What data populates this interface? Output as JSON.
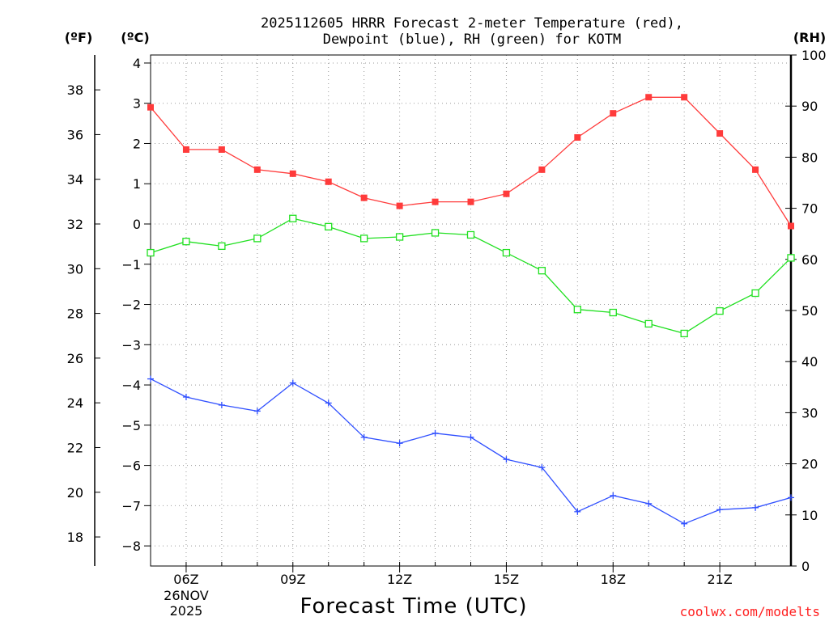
{
  "chart_data": {
    "type": "line",
    "title_lines": [
      "2025112605 HRRR Forecast 2-meter Temperature (red),",
      "Dewpoint (blue), RH (green) for KOTM"
    ],
    "xlabel": "Forecast Time (UTC)",
    "x_hours": [
      5,
      6,
      7,
      8,
      9,
      10,
      11,
      12,
      13,
      14,
      15,
      16,
      17,
      18,
      19,
      20,
      21,
      22,
      23
    ],
    "x_range": [
      5,
      23
    ],
    "x_ticks": [
      {
        "hour": 6,
        "label": "06Z",
        "date": "26NOV",
        "year": "2025"
      },
      {
        "hour": 9,
        "label": "09Z"
      },
      {
        "hour": 12,
        "label": "12Z"
      },
      {
        "hour": 15,
        "label": "15Z"
      },
      {
        "hour": 18,
        "label": "18Z"
      },
      {
        "hour": 21,
        "label": "21Z"
      }
    ],
    "axes": {
      "fahrenheit": {
        "label": "(ºF)",
        "ticks": [
          "38",
          "36",
          "34",
          "32",
          "30",
          "28",
          "26",
          "24",
          "22",
          "20",
          "18"
        ]
      },
      "celsius": {
        "label": "(ºC)",
        "range": [
          -8.5,
          4.2
        ],
        "ticks": [
          "4",
          "3",
          "2",
          "1",
          "0",
          "−1",
          "−2",
          "−3",
          "−4",
          "−5",
          "−6",
          "−7",
          "−8"
        ]
      },
      "rh": {
        "label": "(RH)",
        "range": [
          0,
          100
        ],
        "ticks": [
          "100",
          "90",
          "80",
          "70",
          "60",
          "50",
          "40",
          "30",
          "20",
          "10",
          "0"
        ]
      }
    },
    "series": [
      {
        "name": "Temperature",
        "axis": "celsius",
        "color": "#ff3b3b",
        "marker": "filled-square",
        "values": [
          2.9,
          1.85,
          1.85,
          1.35,
          1.25,
          1.05,
          0.65,
          0.45,
          0.55,
          0.55,
          0.75,
          1.35,
          2.15,
          2.75,
          3.15,
          3.15,
          2.25,
          1.35,
          -0.05
        ]
      },
      {
        "name": "Dewpoint",
        "axis": "celsius",
        "color": "#3050ff",
        "marker": "plus",
        "values": [
          -3.85,
          -4.3,
          -4.5,
          -4.65,
          -3.95,
          -4.45,
          -5.3,
          -5.45,
          -5.2,
          -5.3,
          -5.85,
          -6.05,
          -7.15,
          -6.75,
          -6.95,
          -7.45,
          -7.1,
          -7.05,
          -6.8
        ]
      },
      {
        "name": "RH",
        "axis": "rh",
        "color": "#20e020",
        "marker": "open-square",
        "values": [
          61.3,
          63.5,
          62.6,
          64.1,
          68.0,
          66.4,
          64.1,
          64.4,
          65.2,
          64.8,
          61.3,
          57.8,
          50.2,
          49.6,
          47.4,
          45.5,
          49.9,
          53.4,
          60.3
        ]
      }
    ],
    "credit": "coolwx.com/modelts"
  }
}
